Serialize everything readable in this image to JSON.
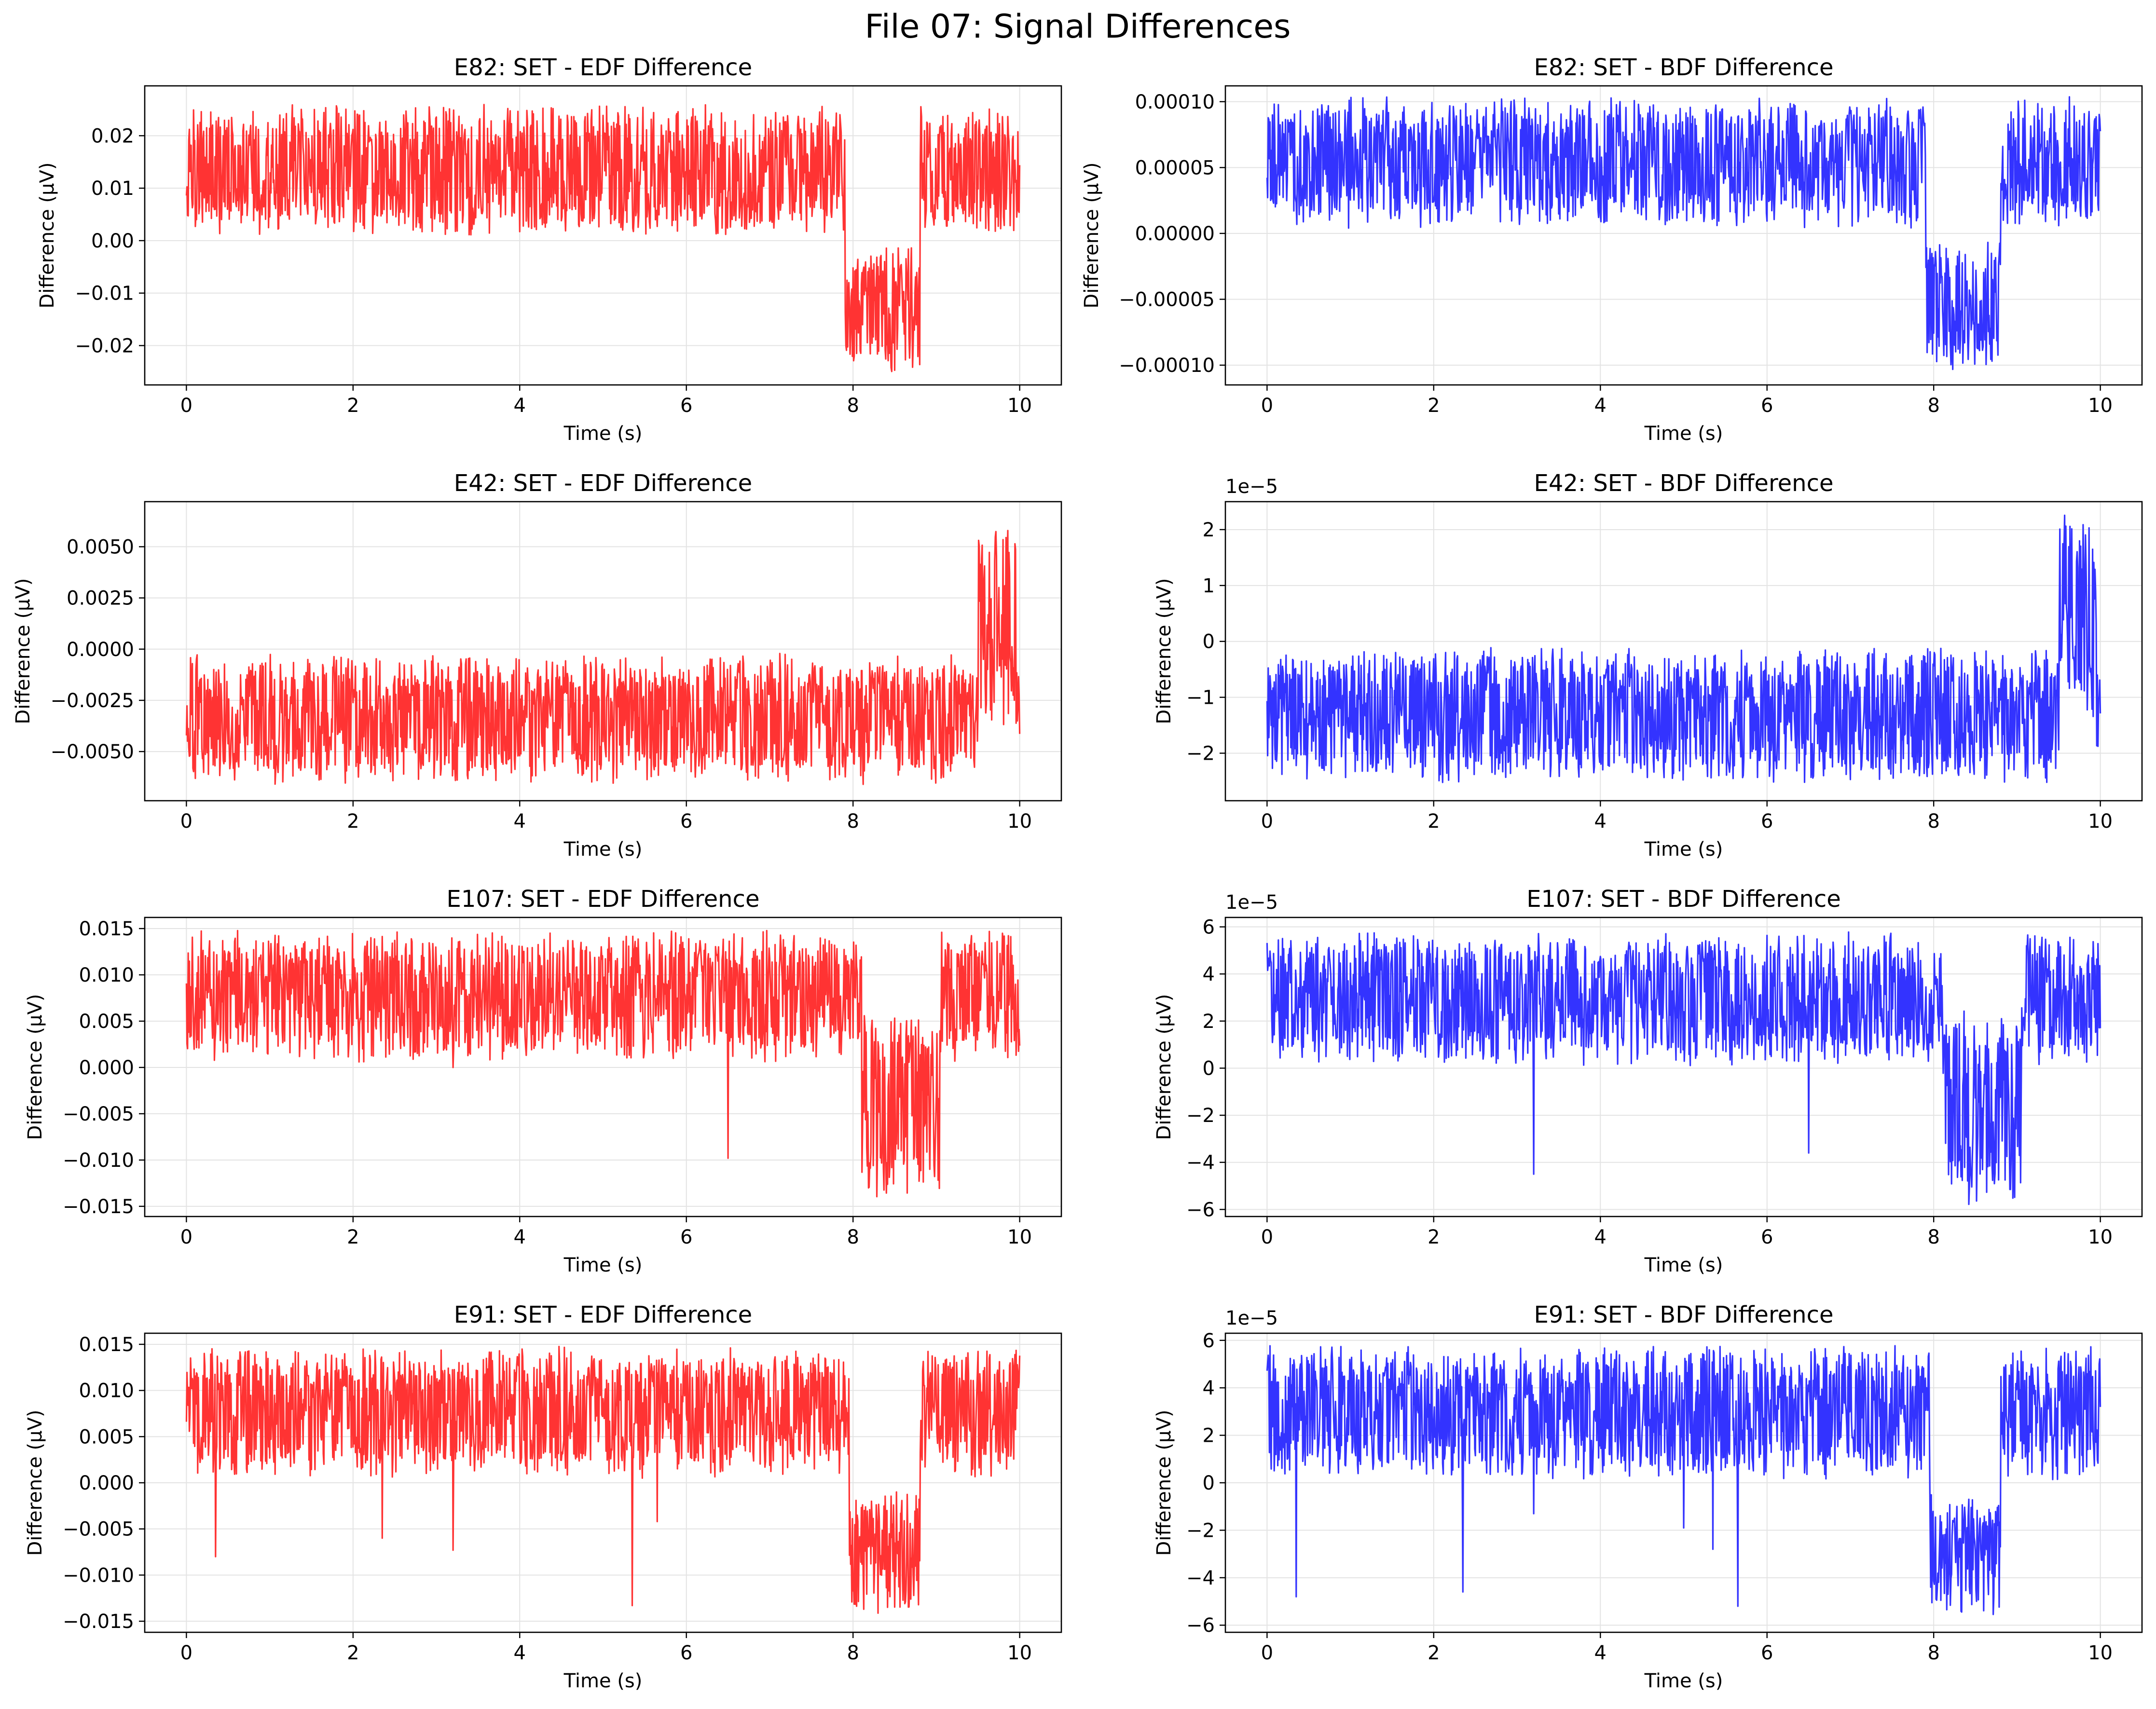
{
  "figure": {
    "title": "File 07: Signal Differences",
    "colors": {
      "edf": "#ff3333",
      "bdf": "#3333ff",
      "grid": "#e3e3e3",
      "axes": "#000000"
    }
  },
  "chart_data": [
    {
      "type": "line",
      "title": "E82: SET - EDF Difference",
      "xlabel": "Time (s)",
      "ylabel": "Difference (µV)",
      "color": "#ff3333",
      "xlim": [
        -0.5,
        10.5
      ],
      "ylim": [
        -0.0275,
        0.0295
      ],
      "xticks": [
        0,
        2,
        4,
        6,
        8,
        10
      ],
      "xtick_labels": [
        "0",
        "2",
        "4",
        "6",
        "8",
        "10"
      ],
      "yticks": [
        -0.02,
        -0.01,
        0.0,
        0.01,
        0.02
      ],
      "ytick_labels": [
        "−0.02",
        "−0.01",
        "0.00",
        "0.01",
        "0.02"
      ],
      "offset_label": "",
      "grid": true,
      "segments": [
        {
          "x0": 0,
          "x1": 7.9,
          "low": 0.001,
          "high": 0.026
        },
        {
          "x0": 7.9,
          "x1": 8.8,
          "low": -0.026,
          "high": -0.001
        },
        {
          "x0": 8.8,
          "x1": 10,
          "low": 0.001,
          "high": 0.026
        }
      ],
      "spikes": []
    },
    {
      "type": "line",
      "title": "E82: SET - BDF Difference",
      "xlabel": "Time (s)",
      "ylabel": "Difference (µV)",
      "color": "#3333ff",
      "xlim": [
        -0.5,
        10.5
      ],
      "ylim": [
        -0.000115,
        0.000112
      ],
      "xticks": [
        0,
        2,
        4,
        6,
        8,
        10
      ],
      "xtick_labels": [
        "0",
        "2",
        "4",
        "6",
        "8",
        "10"
      ],
      "yticks": [
        -0.0001,
        -5e-05,
        0.0,
        5e-05,
        0.0001
      ],
      "ytick_labels": [
        "−0.00010",
        "−0.00005",
        "0.00000",
        "0.00005",
        "0.00010"
      ],
      "offset_label": "",
      "grid": true,
      "segments": [
        {
          "x0": 0,
          "x1": 7.9,
          "low": 4e-06,
          "high": 0.000104
        },
        {
          "x0": 7.9,
          "x1": 8.8,
          "low": -0.000104,
          "high": -4e-06
        },
        {
          "x0": 8.8,
          "x1": 10,
          "low": 4e-06,
          "high": 0.000104
        }
      ],
      "spikes": []
    },
    {
      "type": "line",
      "title": "E42: SET - EDF Difference",
      "xlabel": "Time (s)",
      "ylabel": "Difference (µV)",
      "color": "#ff3333",
      "xlim": [
        -0.5,
        10.5
      ],
      "ylim": [
        -0.0074,
        0.0072
      ],
      "xticks": [
        0,
        2,
        4,
        6,
        8,
        10
      ],
      "xtick_labels": [
        "0",
        "2",
        "4",
        "6",
        "8",
        "10"
      ],
      "yticks": [
        -0.005,
        -0.0025,
        0.0,
        0.0025,
        0.005
      ],
      "ytick_labels": [
        "−0.0050",
        "−0.0025",
        "0.0000",
        "0.0025",
        "0.0050"
      ],
      "offset_label": "",
      "grid": true,
      "segments": [
        {
          "x0": 0,
          "x1": 9.5,
          "low": -0.0066,
          "high": -0.0002
        },
        {
          "x0": 9.5,
          "x1": 9.95,
          "low": -0.004,
          "high": 0.0066
        },
        {
          "x0": 9.95,
          "x1": 10,
          "low": -0.005,
          "high": -0.001
        }
      ],
      "spikes": []
    },
    {
      "type": "line",
      "title": "E42: SET - BDF Difference",
      "xlabel": "Time (s)",
      "ylabel": "Difference (µV)",
      "color": "#3333ff",
      "xlim": [
        -0.5,
        10.5
      ],
      "ylim": [
        -2.85e-05,
        2.5e-05
      ],
      "xticks": [
        0,
        2,
        4,
        6,
        8,
        10
      ],
      "xtick_labels": [
        "0",
        "2",
        "4",
        "6",
        "8",
        "10"
      ],
      "yticks": [
        -2e-05,
        -1e-05,
        0,
        1e-05,
        2e-05
      ],
      "ytick_labels": [
        "−2",
        "−1",
        "0",
        "1",
        "2"
      ],
      "offset_label": "1e−5",
      "grid": true,
      "segments": [
        {
          "x0": 0,
          "x1": 9.5,
          "low": -2.55e-05,
          "high": -1e-06
        },
        {
          "x0": 9.5,
          "x1": 9.95,
          "low": -1.5e-05,
          "high": 2.3e-05
        },
        {
          "x0": 9.95,
          "x1": 10,
          "low": -2e-05,
          "high": -5e-06
        }
      ],
      "spikes": []
    },
    {
      "type": "line",
      "title": "E107: SET - EDF Difference",
      "xlabel": "Time (s)",
      "ylabel": "Difference (µV)",
      "color": "#ff3333",
      "xlim": [
        -0.5,
        10.5
      ],
      "ylim": [
        -0.0161,
        0.0162
      ],
      "xticks": [
        0,
        2,
        4,
        6,
        8,
        10
      ],
      "xtick_labels": [
        "0",
        "2",
        "4",
        "6",
        "8",
        "10"
      ],
      "yticks": [
        -0.015,
        -0.01,
        -0.005,
        0.0,
        0.005,
        0.01,
        0.015
      ],
      "ytick_labels": [
        "−0.015",
        "−0.010",
        "−0.005",
        "0.000",
        "0.005",
        "0.010",
        "0.015"
      ],
      "offset_label": "",
      "grid": true,
      "segments": [
        {
          "x0": 0,
          "x1": 8.1,
          "low": 0.0005,
          "high": 0.0148
        },
        {
          "x0": 8.1,
          "x1": 9.05,
          "low": -0.0145,
          "high": 0.006
        },
        {
          "x0": 9.05,
          "x1": 10,
          "low": 0.0005,
          "high": 0.0148
        }
      ],
      "spikes": [
        {
          "x": 6.5,
          "y": -0.0098
        },
        {
          "x": 3.2,
          "y": 0.0
        }
      ]
    },
    {
      "type": "line",
      "title": "E107: SET - BDF Difference",
      "xlabel": "Time (s)",
      "ylabel": "Difference (µV)",
      "color": "#3333ff",
      "xlim": [
        -0.5,
        10.5
      ],
      "ylim": [
        -6.3e-05,
        6.4e-05
      ],
      "xticks": [
        0,
        2,
        4,
        6,
        8,
        10
      ],
      "xtick_labels": [
        "0",
        "2",
        "4",
        "6",
        "8",
        "10"
      ],
      "yticks": [
        -6e-05,
        -4e-05,
        -2e-05,
        0,
        2e-05,
        4e-05,
        6e-05
      ],
      "ytick_labels": [
        "−6",
        "−4",
        "−2",
        "0",
        "2",
        "4",
        "6"
      ],
      "offset_label": "1e−5",
      "grid": true,
      "segments": [
        {
          "x0": 0,
          "x1": 8.1,
          "low": 1e-06,
          "high": 5.8e-05
        },
        {
          "x0": 8.1,
          "x1": 9.05,
          "low": -5.8e-05,
          "high": 2.5e-05
        },
        {
          "x0": 9.05,
          "x1": 10,
          "low": 1e-06,
          "high": 5.8e-05
        }
      ],
      "spikes": [
        {
          "x": 3.2,
          "y": -4.5e-05
        },
        {
          "x": 6.5,
          "y": -3.6e-05
        }
      ]
    },
    {
      "type": "line",
      "title": "E91: SET - EDF Difference",
      "xlabel": "Time (s)",
      "ylabel": "Difference (µV)",
      "color": "#ff3333",
      "xlim": [
        -0.5,
        10.5
      ],
      "ylim": [
        -0.0162,
        0.0162
      ],
      "xticks": [
        0,
        2,
        4,
        6,
        8,
        10
      ],
      "xtick_labels": [
        "0",
        "2",
        "4",
        "6",
        "8",
        "10"
      ],
      "yticks": [
        -0.015,
        -0.01,
        -0.005,
        0.0,
        0.005,
        0.01,
        0.015
      ],
      "ytick_labels": [
        "−0.015",
        "−0.010",
        "−0.005",
        "0.000",
        "0.005",
        "0.010",
        "0.015"
      ],
      "offset_label": "",
      "grid": true,
      "segments": [
        {
          "x0": 0,
          "x1": 7.95,
          "low": 0.0005,
          "high": 0.0148
        },
        {
          "x0": 7.95,
          "x1": 8.8,
          "low": -0.0148,
          "high": -0.0005
        },
        {
          "x0": 8.8,
          "x1": 10,
          "low": 0.0005,
          "high": 0.0148
        }
      ],
      "spikes": [
        {
          "x": 0.35,
          "y": -0.008
        },
        {
          "x": 2.35,
          "y": -0.006
        },
        {
          "x": 3.2,
          "y": -0.0073
        },
        {
          "x": 5.35,
          "y": -0.0133
        },
        {
          "x": 5.65,
          "y": -0.0042
        }
      ]
    },
    {
      "type": "line",
      "title": "E91: SET - BDF Difference",
      "xlabel": "Time (s)",
      "ylabel": "Difference (µV)",
      "color": "#3333ff",
      "xlim": [
        -0.5,
        10.5
      ],
      "ylim": [
        -6.3e-05,
        6.3e-05
      ],
      "xticks": [
        0,
        2,
        4,
        6,
        8,
        10
      ],
      "xtick_labels": [
        "0",
        "2",
        "4",
        "6",
        "8",
        "10"
      ],
      "yticks": [
        -6e-05,
        -4e-05,
        -2e-05,
        0,
        2e-05,
        4e-05,
        6e-05
      ],
      "ytick_labels": [
        "−6",
        "−4",
        "−2",
        "0",
        "2",
        "4",
        "6"
      ],
      "offset_label": "1e−5",
      "grid": true,
      "segments": [
        {
          "x0": 0,
          "x1": 7.95,
          "low": 1e-06,
          "high": 5.8e-05
        },
        {
          "x0": 7.95,
          "x1": 8.8,
          "low": -5.8e-05,
          "high": -5e-06
        },
        {
          "x0": 8.8,
          "x1": 10,
          "low": 1e-06,
          "high": 5.8e-05
        }
      ],
      "spikes": [
        {
          "x": 0.35,
          "y": -4.8e-05
        },
        {
          "x": 2.35,
          "y": -4.6e-05
        },
        {
          "x": 3.2,
          "y": -1.3e-05
        },
        {
          "x": 5.0,
          "y": -1.9e-05
        },
        {
          "x": 5.35,
          "y": -2.8e-05
        },
        {
          "x": 5.65,
          "y": -5.2e-05
        }
      ]
    }
  ]
}
